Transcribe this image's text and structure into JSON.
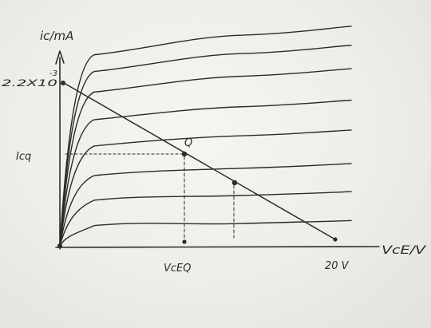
{
  "labels": {
    "y_axis": "ic/mA",
    "y_exponent": "-3",
    "y_intercept": "2.2X10",
    "icq": "Icq",
    "q_point": "Q",
    "vceq": "VcEQ",
    "vcc": "20 V",
    "x_axis": "VcE/V"
  },
  "colors": {
    "ink": "#2a2a2a",
    "paper": "#f1efea"
  },
  "curves": [
    {
      "saturation": 0.938
    },
    {
      "saturation": 0.856
    },
    {
      "saturation": 0.755
    },
    {
      "saturation": 0.619
    },
    {
      "saturation": 0.49
    },
    {
      "saturation": 0.345
    },
    {
      "saturation": 0.224
    },
    {
      "saturation": 0.099
    }
  ]
}
